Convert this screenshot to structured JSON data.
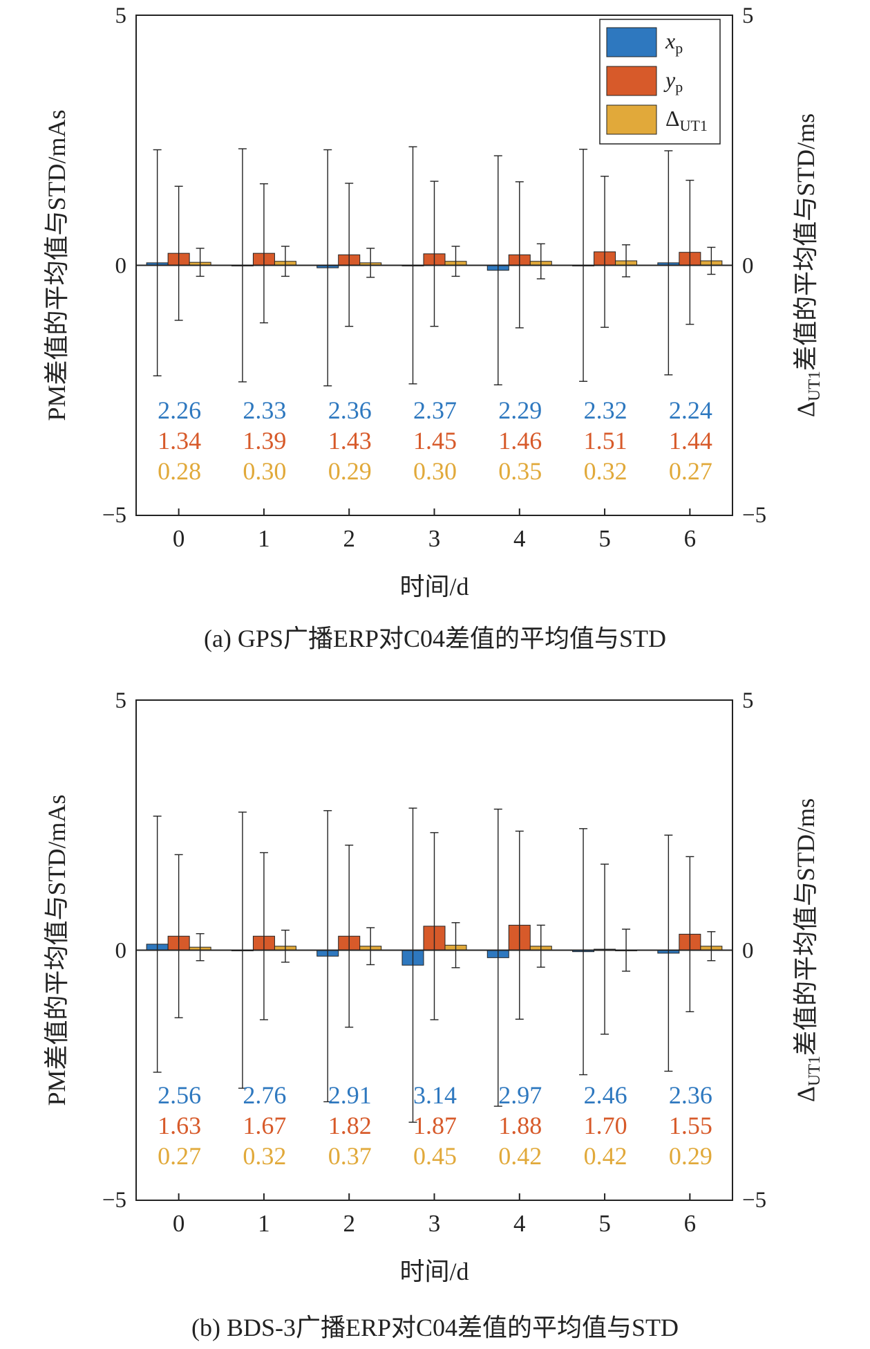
{
  "colors": {
    "xp": "#2E78BF",
    "yp": "#D75A2A",
    "ut1": "#E1A93A"
  },
  "legend": {
    "xp": "x",
    "xp_sub": "p",
    "yp": "y",
    "yp_sub": "p",
    "ut1": "Δ",
    "ut1_sub": "UT1"
  },
  "chart_data": [
    {
      "type": "bar",
      "caption": "(a) GPS广播ERP对C04差值的平均值与STD",
      "xlabel": "时间/d",
      "ylabel_left": "PM差值的平均值与STD/mAs",
      "ylabel_right_prefix": "Δ",
      "ylabel_right_sub": "UT1",
      "ylabel_right_suffix": "差值的平均值与STD/ms",
      "ylim": [
        -5,
        5
      ],
      "yticks": [
        "5",
        "0",
        "−5"
      ],
      "categories": [
        "0",
        "1",
        "2",
        "3",
        "4",
        "5",
        "6"
      ],
      "series": [
        {
          "name": "xp",
          "values": [
            0.05,
            0.0,
            -0.05,
            0.0,
            -0.1,
            0.0,
            0.05
          ],
          "std": [
            2.26,
            2.33,
            2.36,
            2.37,
            2.29,
            2.32,
            2.24
          ]
        },
        {
          "name": "yp",
          "values": [
            0.24,
            0.24,
            0.21,
            0.23,
            0.21,
            0.27,
            0.26
          ],
          "std": [
            1.34,
            1.39,
            1.43,
            1.45,
            1.46,
            1.51,
            1.44
          ]
        },
        {
          "name": "ut1",
          "values": [
            0.06,
            0.08,
            0.05,
            0.08,
            0.08,
            0.09,
            0.09
          ],
          "std": [
            0.28,
            0.3,
            0.29,
            0.3,
            0.35,
            0.32,
            0.27
          ]
        }
      ],
      "stats": {
        "xp": [
          "2.26",
          "2.33",
          "2.36",
          "2.37",
          "2.29",
          "2.32",
          "2.24"
        ],
        "yp": [
          "1.34",
          "1.39",
          "1.43",
          "1.45",
          "1.46",
          "1.51",
          "1.44"
        ],
        "ut1": [
          "0.28",
          "0.30",
          "0.29",
          "0.30",
          "0.35",
          "0.32",
          "0.27"
        ]
      },
      "show_legend": true
    },
    {
      "type": "bar",
      "caption": "(b) BDS-3广播ERP对C04差值的平均值与STD",
      "xlabel": "时间/d",
      "ylabel_left": "PM差值的平均值与STD/mAs",
      "ylabel_right_prefix": "Δ",
      "ylabel_right_sub": "UT1",
      "ylabel_right_suffix": "差值的平均值与STD/ms",
      "ylim": [
        -5,
        5
      ],
      "yticks": [
        "5",
        "0",
        "−5"
      ],
      "categories": [
        "0",
        "1",
        "2",
        "3",
        "4",
        "5",
        "6"
      ],
      "series": [
        {
          "name": "xp",
          "values": [
            0.12,
            0.0,
            -0.12,
            -0.3,
            -0.15,
            -0.03,
            -0.06
          ],
          "std": [
            2.56,
            2.76,
            2.91,
            3.14,
            2.97,
            2.46,
            2.36
          ]
        },
        {
          "name": "yp",
          "values": [
            0.28,
            0.28,
            0.28,
            0.48,
            0.5,
            0.02,
            0.32
          ],
          "std": [
            1.63,
            1.67,
            1.82,
            1.87,
            1.88,
            1.7,
            1.55
          ]
        },
        {
          "name": "ut1",
          "values": [
            0.06,
            0.08,
            0.08,
            0.1,
            0.08,
            0.0,
            0.08
          ],
          "std": [
            0.27,
            0.32,
            0.37,
            0.45,
            0.42,
            0.42,
            0.29
          ]
        }
      ],
      "stats": {
        "xp": [
          "2.56",
          "2.76",
          "2.91",
          "3.14",
          "2.97",
          "2.46",
          "2.36"
        ],
        "yp": [
          "1.63",
          "1.67",
          "1.82",
          "1.87",
          "1.88",
          "1.70",
          "1.55"
        ],
        "ut1": [
          "0.27",
          "0.32",
          "0.37",
          "0.45",
          "0.42",
          "0.42",
          "0.29"
        ]
      },
      "show_legend": false
    }
  ]
}
